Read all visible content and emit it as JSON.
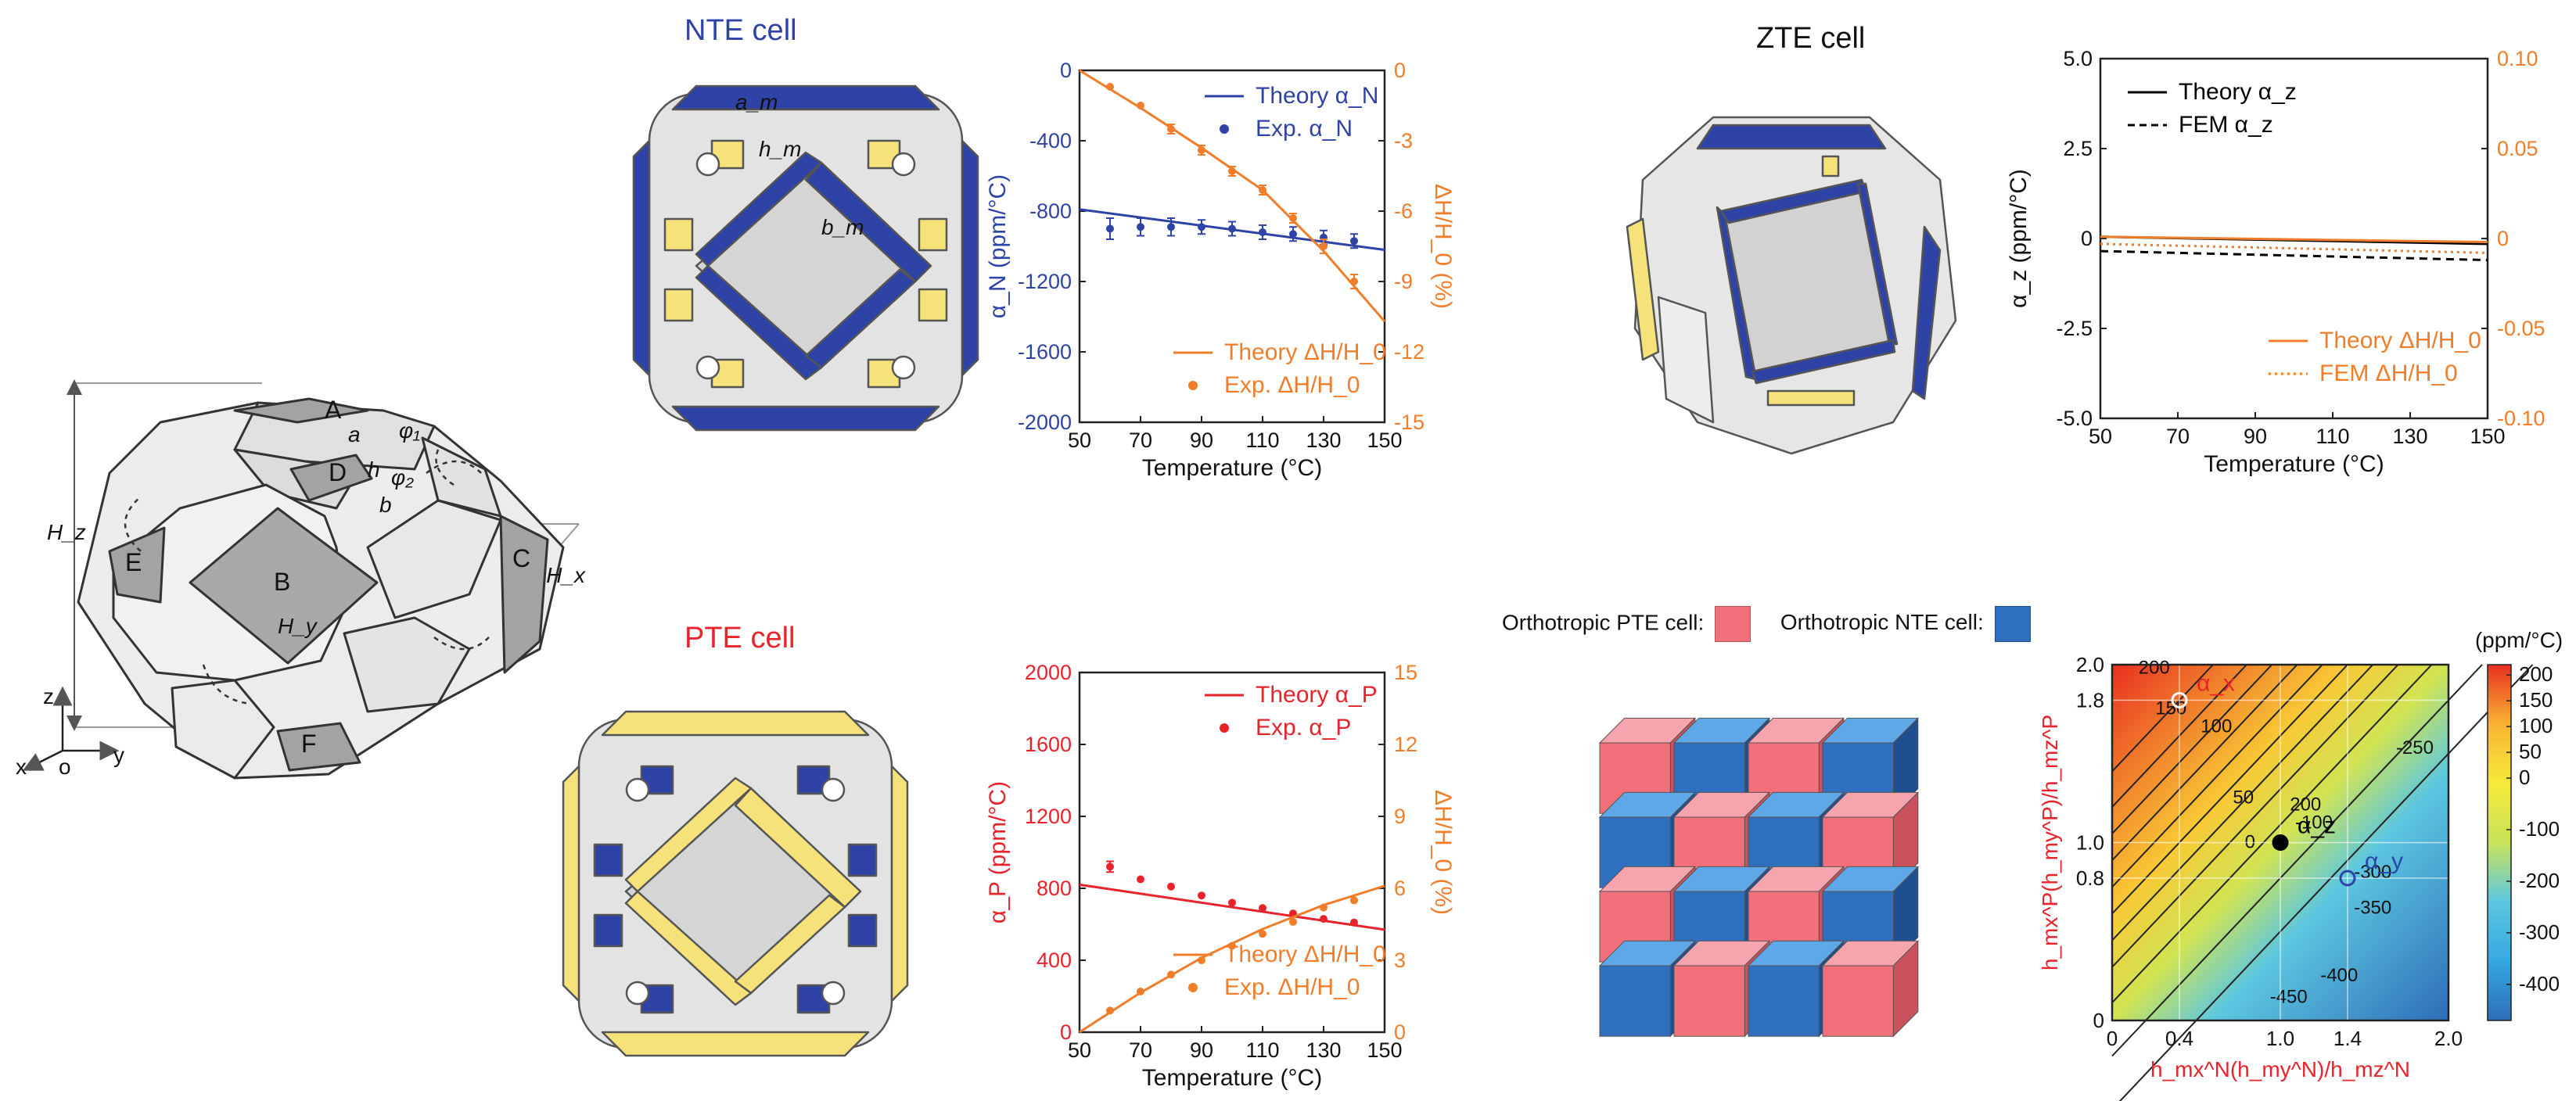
{
  "titles": {
    "nte_cell": "NTE cell",
    "pte_cell": "PTE cell",
    "zte_cell": "ZTE cell"
  },
  "colors": {
    "nte_blue": "#2f43a6",
    "pte_red": "#e8232b",
    "orange": "#f07d2a",
    "yellow": "#f6e27b",
    "gray_face": "#dcdcdc",
    "cube_red": "#f1707c",
    "cube_blue": "#2f6fc0"
  },
  "geometry_labels": {
    "A": "A",
    "B": "B",
    "C": "C",
    "D": "D",
    "E": "E",
    "F": "F",
    "a": "a",
    "b": "b",
    "h": "h",
    "phi1": "φ₁",
    "phi2": "φ₂",
    "Hz": "H_z",
    "Hx": "H_x",
    "Hy": "H_y",
    "axis_z": "z",
    "axis_x": "x",
    "axis_y": "y",
    "axis_o": "o"
  },
  "nte_cell_labels": {
    "am": "a_m",
    "hm": "h_m",
    "bm": "b_m"
  },
  "legend_cells": {
    "pte": "Orthotropic PTE cell:",
    "nte": "Orthotropic NTE cell:"
  },
  "chart_data": [
    {
      "id": "nte_chart",
      "type": "line",
      "xlabel": "Temperature (°C)",
      "ylabel": "α_N (ppm/°C)",
      "y2label": "ΔH/H_0 (%)",
      "xlim": [
        50,
        150
      ],
      "ylim": [
        -2000,
        0
      ],
      "y2lim": [
        -15,
        0
      ],
      "xticks": [
        "50",
        "70",
        "90",
        "110",
        "130",
        "150"
      ],
      "yticks": [
        "0",
        "-400",
        "-800",
        "-1200",
        "-1600",
        "-2000"
      ],
      "y2ticks": [
        "0",
        "-3",
        "-6",
        "-9",
        "-12",
        "-15"
      ],
      "legend_top": [
        {
          "label": "Theory α_N",
          "style": "line",
          "color": "#2f43a6"
        },
        {
          "label": "Exp. α_N",
          "style": "dot",
          "color": "#2f43a6"
        }
      ],
      "legend_bottom": [
        {
          "label": "Theory ΔH/H_0",
          "style": "line",
          "color": "#f07d2a"
        },
        {
          "label": "Exp. ΔH/H_0",
          "style": "dot",
          "color": "#f07d2a"
        }
      ],
      "series": [
        {
          "name": "Theory α_N",
          "axis": "left",
          "style": "line",
          "color": "#2f43a6",
          "x": [
            50,
            150
          ],
          "y": [
            -790,
            -1020
          ]
        },
        {
          "name": "Exp. α_N",
          "axis": "left",
          "style": "dot",
          "color": "#2f43a6",
          "x": [
            60,
            70,
            80,
            90,
            100,
            110,
            120,
            130,
            140
          ],
          "y": [
            -900,
            -890,
            -890,
            -890,
            -900,
            -920,
            -930,
            -950,
            -970
          ],
          "err": [
            60,
            50,
            50,
            40,
            40,
            40,
            40,
            40,
            40
          ]
        },
        {
          "name": "Theory ΔH/H_0",
          "axis": "right",
          "style": "line",
          "color": "#f07d2a",
          "x": [
            50,
            70,
            90,
            110,
            130,
            150
          ],
          "y": [
            0,
            -1.6,
            -3.3,
            -5.1,
            -7.7,
            -10.7
          ]
        },
        {
          "name": "Exp. ΔH/H_0",
          "axis": "right",
          "style": "dot",
          "color": "#f07d2a",
          "x": [
            60,
            70,
            80,
            90,
            100,
            110,
            120,
            130,
            140
          ],
          "y": [
            -0.7,
            -1.5,
            -2.5,
            -3.4,
            -4.3,
            -5.1,
            -6.3,
            -7.5,
            -9.0
          ],
          "err": [
            0,
            0,
            0.2,
            0.2,
            0.2,
            0.2,
            0.2,
            0.3,
            0.3
          ]
        }
      ]
    },
    {
      "id": "pte_chart",
      "type": "line",
      "xlabel": "Temperature (°C)",
      "ylabel": "α_P (ppm/°C)",
      "y2label": "ΔH/H_0 (%)",
      "xlim": [
        50,
        150
      ],
      "ylim": [
        0,
        2000
      ],
      "y2lim": [
        0,
        15
      ],
      "xticks": [
        "50",
        "70",
        "90",
        "110",
        "130",
        "150"
      ],
      "yticks": [
        "2000",
        "1600",
        "1200",
        "800",
        "400",
        "0"
      ],
      "y2ticks": [
        "15",
        "12",
        "9",
        "6",
        "3",
        "0"
      ],
      "legend_top": [
        {
          "label": "Theory α_P",
          "style": "line",
          "color": "#e8232b"
        },
        {
          "label": "Exp. α_P",
          "style": "dot",
          "color": "#e8232b"
        }
      ],
      "legend_bottom": [
        {
          "label": "Theory ΔH/H_0",
          "style": "line",
          "color": "#f07d2a"
        },
        {
          "label": "Exp. ΔH/H_0",
          "style": "dot",
          "color": "#f07d2a"
        }
      ],
      "series": [
        {
          "name": "Theory α_P",
          "axis": "left",
          "style": "line",
          "color": "#e8232b",
          "x": [
            50,
            150
          ],
          "y": [
            820,
            570
          ]
        },
        {
          "name": "Exp. α_P",
          "axis": "left",
          "style": "dot",
          "color": "#e8232b",
          "x": [
            60,
            70,
            80,
            90,
            100,
            110,
            120,
            130,
            140
          ],
          "y": [
            920,
            850,
            810,
            760,
            720,
            690,
            660,
            630,
            610
          ],
          "err": [
            30,
            0,
            0,
            0,
            0,
            0,
            0,
            0,
            0
          ]
        },
        {
          "name": "Theory ΔH/H_0",
          "axis": "right",
          "style": "line",
          "color": "#f07d2a",
          "x": [
            50,
            70,
            90,
            110,
            130,
            150
          ],
          "y": [
            0,
            1.65,
            3.1,
            4.3,
            5.3,
            6.1
          ]
        },
        {
          "name": "Exp. ΔH/H_0",
          "axis": "right",
          "style": "dot",
          "color": "#f07d2a",
          "x": [
            60,
            70,
            80,
            90,
            100,
            110,
            120,
            130,
            140
          ],
          "y": [
            0.9,
            1.7,
            2.4,
            3.0,
            3.6,
            4.1,
            4.6,
            5.2,
            5.5
          ],
          "err": [
            0,
            0,
            0,
            0,
            0,
            0,
            0,
            0,
            0
          ]
        }
      ]
    },
    {
      "id": "zte_chart",
      "type": "line",
      "xlabel": "Temperature (°C)",
      "ylabel": "α_z (ppm/°C)",
      "y2label": "ΔH/H_0 (%)",
      "xlim": [
        50,
        150
      ],
      "ylim": [
        -5,
        5
      ],
      "y2lim": [
        -0.1,
        0.1
      ],
      "xticks": [
        "50",
        "70",
        "90",
        "110",
        "130",
        "150"
      ],
      "yticks": [
        "5.0",
        "2.5",
        "0",
        "-2.5",
        "-5.0"
      ],
      "y2ticks": [
        "0.10",
        "0.05",
        "0",
        "-0.05",
        "-0.10"
      ],
      "legend_top": [
        {
          "label": "Theory α_z",
          "style": "line",
          "color": "#000000"
        },
        {
          "label": "FEM α_z",
          "style": "dash",
          "color": "#000000"
        }
      ],
      "legend_bottom": [
        {
          "label": "Theory ΔH/H_0",
          "style": "line",
          "color": "#f07d2a"
        },
        {
          "label": "FEM ΔH/H_0",
          "style": "dot-line",
          "color": "#f07d2a"
        }
      ],
      "series": [
        {
          "name": "Theory α_z",
          "axis": "left",
          "style": "line",
          "color": "#000000",
          "x": [
            50,
            150
          ],
          "y": [
            0.05,
            -0.15
          ]
        },
        {
          "name": "FEM α_z",
          "axis": "left",
          "style": "dash",
          "color": "#000000",
          "x": [
            50,
            150
          ],
          "y": [
            -0.35,
            -0.6
          ]
        },
        {
          "name": "Theory ΔH/H_0",
          "axis": "right",
          "style": "line",
          "color": "#f07d2a",
          "x": [
            50,
            150
          ],
          "y": [
            0.001,
            -0.002
          ]
        },
        {
          "name": "FEM ΔH/H_0",
          "axis": "right",
          "style": "dot-line",
          "color": "#f07d2a",
          "x": [
            50,
            150
          ],
          "y": [
            -0.003,
            -0.008
          ]
        }
      ]
    },
    {
      "id": "heatmap_chart",
      "type": "heatmap",
      "xlabel": "h_mx^N(h_my^N)/h_mz^N",
      "ylabel": "h_mx^P(h_my^P)/h_mz^P",
      "colorbar_unit": "(ppm/°C)",
      "xlim": [
        0,
        2.0
      ],
      "ylim": [
        0,
        2.0
      ],
      "xticks": [
        "0",
        "0.4",
        "1.0",
        "1.4",
        "2.0"
      ],
      "yticks": [
        "0",
        "0.8",
        "1.0",
        "1.8",
        "2.0"
      ],
      "colorbar_ticks": [
        "200",
        "150",
        "100",
        "50",
        "0",
        "-100",
        "-200",
        "-300",
        "-400"
      ],
      "colorbar_range": [
        -470,
        220
      ],
      "contour_labels": [
        "200",
        "150",
        "100",
        "50",
        "0",
        "-100",
        "200",
        "-250",
        "-300",
        "-350",
        "-400",
        "-450"
      ],
      "points": [
        {
          "label": "α_x",
          "x": 0.4,
          "y": 1.8,
          "color": "#e8232b"
        },
        {
          "label": "α_z",
          "x": 1.0,
          "y": 1.0,
          "color": "#000000"
        },
        {
          "label": "α_y",
          "x": 1.4,
          "y": 0.8,
          "color": "#2f43a6"
        }
      ]
    }
  ]
}
